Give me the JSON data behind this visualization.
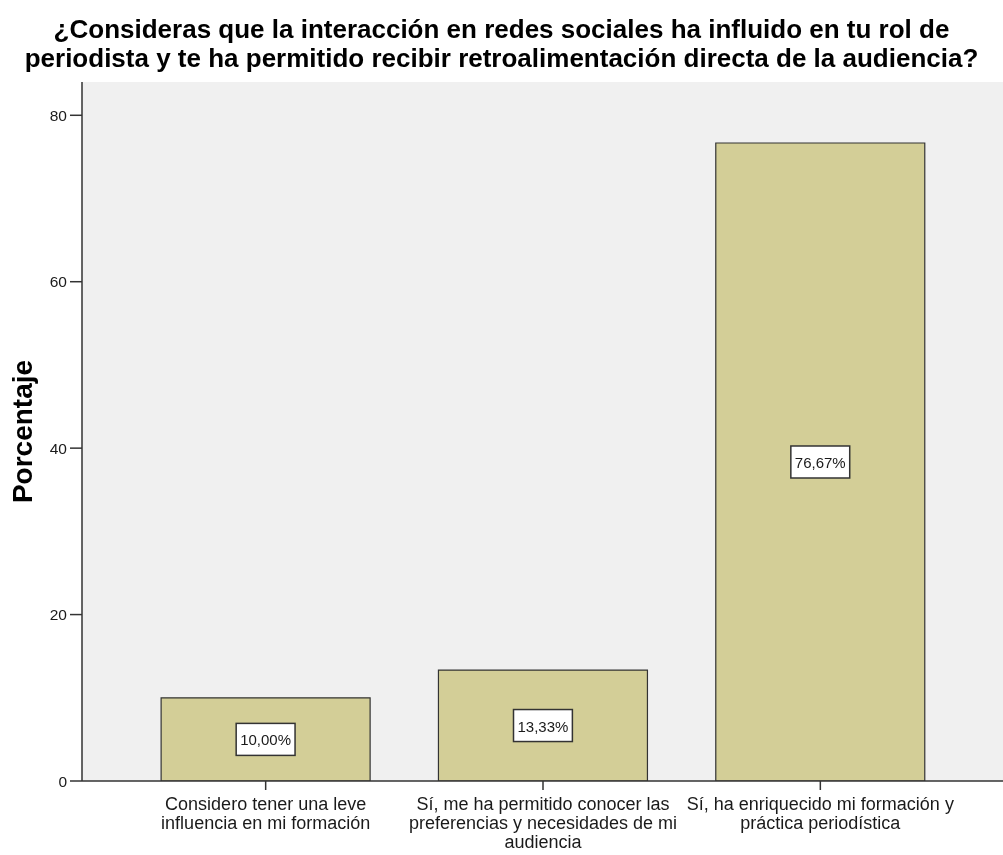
{
  "chart_data": {
    "type": "bar",
    "title": "¿Consideras que la interacción en redes sociales ha influido en tu rol de periodista y te ha permitido recibir retroalimentación directa de la audiencia?",
    "ylabel": "Porcentaje",
    "categories": [
      "Considero tener una leve influencia en mi formación",
      "Sí, me ha permitido conocer las preferencias y necesidades de mi audiencia",
      "Sí, ha enriquecido mi formación y práctica periodística"
    ],
    "values": [
      10.0,
      13.33,
      76.67
    ],
    "value_labels": [
      "10,00%",
      "13,33%",
      "76,67%"
    ],
    "color": "#d3ce97",
    "ylim": [
      0,
      84
    ],
    "yticks": [
      0,
      20,
      40,
      60,
      80
    ]
  }
}
